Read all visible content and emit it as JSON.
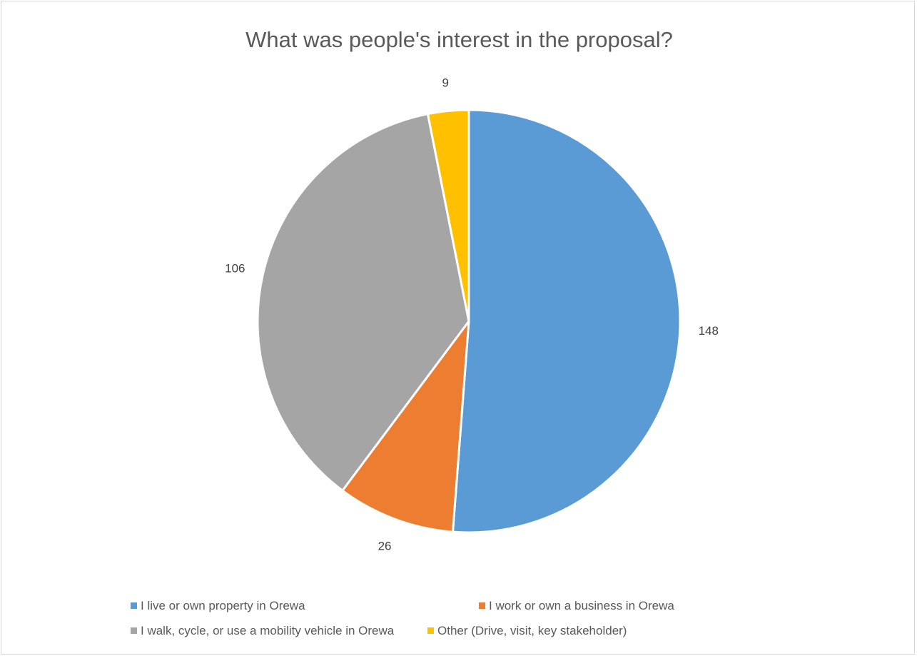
{
  "chart_data": {
    "type": "pie",
    "title": "What was people's interest in the proposal?",
    "categories": [
      "I live or own property in Orewa",
      "I work or own a business in Orewa",
      "I walk, cycle, or use a mobility vehicle in Orewa",
      "Other (Drive, visit, key stakeholder)"
    ],
    "values": [
      148,
      26,
      106,
      9
    ],
    "data_labels": [
      "148",
      "26",
      "106",
      "9"
    ],
    "colors": [
      "#5b9bd5",
      "#ed7d31",
      "#a5a5a5",
      "#ffc000"
    ],
    "start_angle": "12 o'clock",
    "direction": "clockwise",
    "legend_position": "bottom"
  }
}
